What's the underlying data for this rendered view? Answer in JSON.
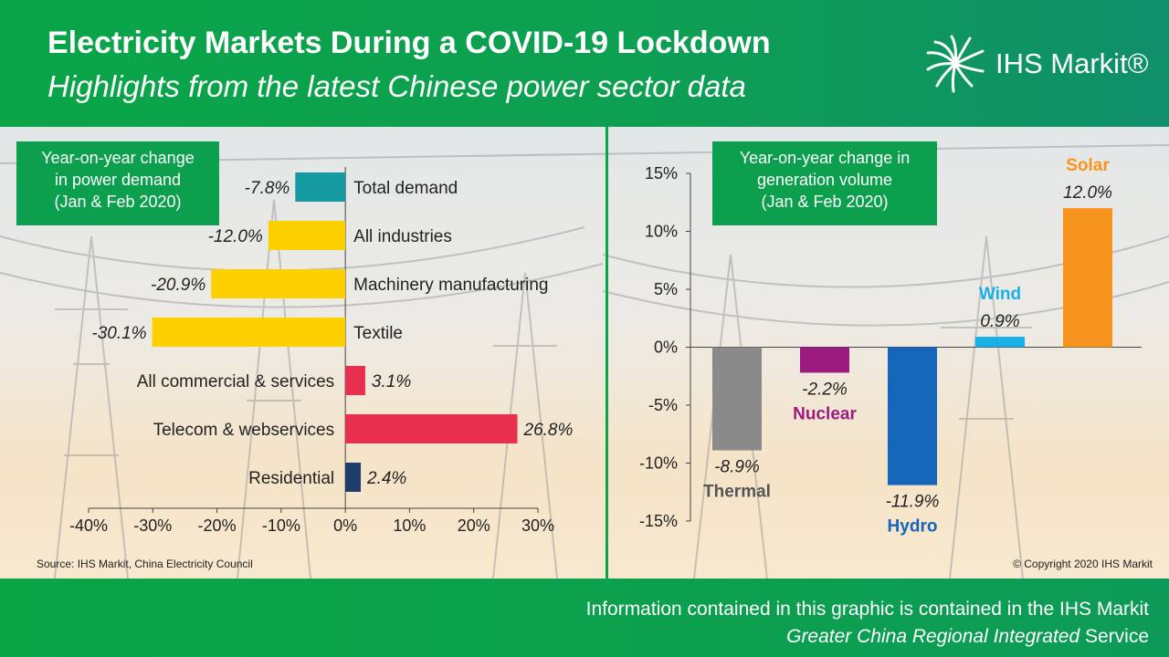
{
  "header": {
    "title": "Electricity Markets During a COVID-19 Lockdown",
    "subtitle": "Highlights from the latest Chinese power sector data",
    "brand": "IHS Markit®"
  },
  "footer": {
    "line1": "Information contained in this graphic is contained in the IHS Markit",
    "line2_italic": "Greater China Regional Integrated",
    "line2_rest": " Service"
  },
  "source": "Source: IHS Markit, China Electricity Council",
  "copyright": "© Copyright  2020 IHS Markit",
  "colors": {
    "green": "#0aa547",
    "teal": "#149aa0",
    "yellow": "#ffd000",
    "red": "#e8304e",
    "navy": "#1d3d6b",
    "thermal": "#8a8a8a",
    "nuclear": "#9b1b7e",
    "hydro": "#1565b8",
    "wind": "#19b0e8",
    "solar": "#f7941d"
  },
  "chart_data": [
    {
      "type": "bar",
      "orientation": "horizontal",
      "title_lines": [
        "Year-on-year change",
        "in power demand",
        "(Jan & Feb 2020)"
      ],
      "categories": [
        "Total demand",
        "All industries",
        "Machinery manufacturing",
        "Textile",
        "All commercial & services",
        "Telecom & webservices",
        "Residential"
      ],
      "values": [
        -7.8,
        -12.0,
        -20.9,
        -30.1,
        3.1,
        26.8,
        2.4
      ],
      "value_labels": [
        "-7.8%",
        "-12.0%",
        "-20.9%",
        "-30.1%",
        "3.1%",
        "26.8%",
        "2.4%"
      ],
      "bar_colors": [
        "#149aa0",
        "#ffd000",
        "#ffd000",
        "#ffd000",
        "#e8304e",
        "#e8304e",
        "#1d3d6b"
      ],
      "xlim": [
        -40,
        30
      ],
      "xticks": [
        -40,
        -30,
        -20,
        -10,
        0,
        10,
        20,
        30
      ],
      "xtick_labels": [
        "-40%",
        "-30%",
        "-20%",
        "-10%",
        "0%",
        "10%",
        "20%",
        "30%"
      ],
      "xlabel": "",
      "ylabel": "",
      "grid": false
    },
    {
      "type": "bar",
      "orientation": "vertical",
      "title_lines": [
        "Year-on-year change in",
        "generation volume",
        "(Jan & Feb 2020)"
      ],
      "categories": [
        "Thermal",
        "Nuclear",
        "Hydro",
        "Wind",
        "Solar"
      ],
      "values": [
        -8.9,
        -2.2,
        -11.9,
        0.9,
        12.0
      ],
      "value_labels": [
        "-8.9%",
        "-2.2%",
        "-11.9%",
        "0.9%",
        "12.0%"
      ],
      "bar_colors": [
        "#8a8a8a",
        "#9b1b7e",
        "#1565b8",
        "#19b0e8",
        "#f7941d"
      ],
      "category_label_colors": [
        "#555555",
        "#9b1b7e",
        "#1565b8",
        "#19b0e8",
        "#f7941d"
      ],
      "ylim": [
        -15,
        15
      ],
      "yticks": [
        15,
        10,
        5,
        0,
        -5,
        -10,
        -15
      ],
      "ytick_labels": [
        "15%",
        "10%",
        "5%",
        "0%",
        "-5%",
        "-10%",
        "-15%"
      ],
      "xlabel": "",
      "ylabel": "",
      "grid": false
    }
  ]
}
